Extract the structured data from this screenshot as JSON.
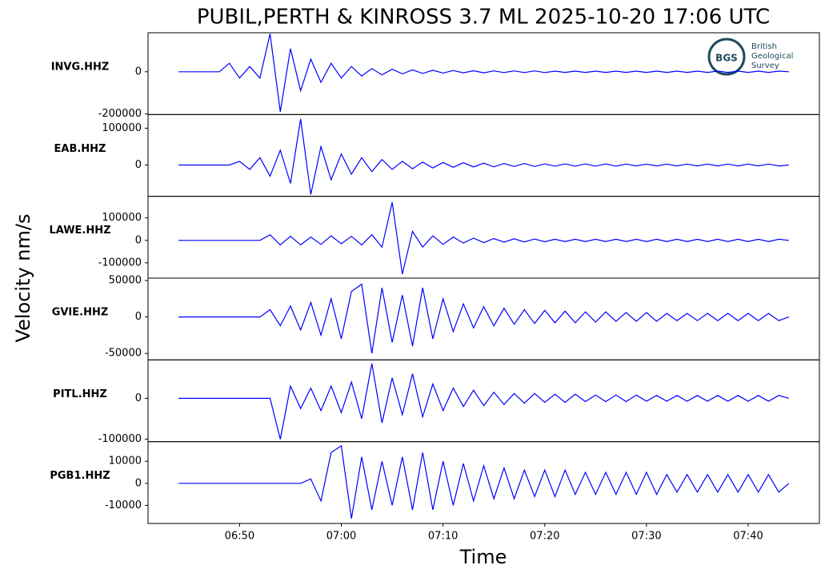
{
  "chart_data": {
    "type": "line",
    "title": "PUBIL,PERTH & KINROSS 3.7 ML   2025-10-20 17:06 UTC",
    "xlabel": "Time",
    "ylabel": "Velocity nm/s",
    "x": [
      "06:44",
      "06:45",
      "06:46",
      "06:47",
      "06:48",
      "06:49",
      "06:50",
      "06:51",
      "06:52",
      "06:53",
      "06:54",
      "06:55",
      "06:56",
      "06:57",
      "06:58",
      "06:59",
      "07:00",
      "07:01",
      "07:02",
      "07:03",
      "07:04",
      "07:05",
      "07:06",
      "07:07",
      "07:08",
      "07:09",
      "07:10",
      "07:11",
      "07:12",
      "07:13",
      "07:14",
      "07:15",
      "07:16",
      "07:17",
      "07:18",
      "07:19",
      "07:20",
      "07:21",
      "07:22",
      "07:23",
      "07:24",
      "07:25",
      "07:26",
      "07:27",
      "07:28",
      "07:29",
      "07:30",
      "07:31",
      "07:32",
      "07:33",
      "07:34",
      "07:35",
      "07:36",
      "07:37",
      "07:38",
      "07:39",
      "07:40",
      "07:41",
      "07:42",
      "07:43",
      "07:44"
    ],
    "xlim": [
      "06:41",
      "07:47"
    ],
    "xticks": [
      "06:50",
      "07:00",
      "07:10",
      "07:20",
      "07:30",
      "07:40"
    ],
    "series": [
      {
        "name": "INVG.HHZ",
        "color": "#0000ff",
        "ylim": [
          -203000,
          185000
        ],
        "yticks": [
          -200000,
          0
        ],
        "values": [
          0,
          0,
          0,
          0,
          0,
          40000,
          -30000,
          25000,
          -30000,
          180000,
          -190000,
          110000,
          -90000,
          60000,
          -50000,
          40000,
          -30000,
          25000,
          -20000,
          15000,
          -15000,
          12000,
          -10000,
          9000,
          -8000,
          7000,
          -6000,
          6000,
          -5000,
          5000,
          -5000,
          4000,
          -4000,
          4000,
          -4000,
          4000,
          -4000,
          3000,
          -3000,
          3000,
          -3000,
          3000,
          -3000,
          3000,
          -3000,
          3000,
          -3000,
          3000,
          -3000,
          3000,
          -3000,
          3000,
          -3000,
          3000,
          -3000,
          3000,
          -3000,
          3000,
          -3000,
          3000,
          0
        ]
      },
      {
        "name": "EAB.HHZ",
        "color": "#0000ff",
        "ylim": [
          -85000,
          137000
        ],
        "yticks": [
          0,
          100000
        ],
        "values": [
          0,
          0,
          0,
          0,
          0,
          0,
          10000,
          -12000,
          20000,
          -30000,
          40000,
          -50000,
          125000,
          -80000,
          50000,
          -40000,
          30000,
          -25000,
          20000,
          -18000,
          15000,
          -12000,
          10000,
          -10000,
          8000,
          -8000,
          7000,
          -6000,
          6000,
          -5000,
          5000,
          -5000,
          4000,
          -4000,
          4000,
          -4000,
          3000,
          -3000,
          3000,
          -3000,
          3000,
          -3000,
          3000,
          -3000,
          2500,
          -2500,
          2500,
          -2500,
          2500,
          -2500,
          2500,
          -2500,
          2500,
          -2500,
          2500,
          -2500,
          2500,
          -2500,
          2500,
          -2500,
          0
        ]
      },
      {
        "name": "LAWE.HHZ",
        "color": "#0000ff",
        "ylim": [
          -168000,
          196000
        ],
        "yticks": [
          -100000,
          0,
          100000
        ],
        "values": [
          0,
          0,
          0,
          0,
          0,
          0,
          0,
          0,
          0,
          25000,
          -20000,
          18000,
          -20000,
          15000,
          -18000,
          20000,
          -15000,
          18000,
          -20000,
          25000,
          -30000,
          170000,
          -150000,
          40000,
          -30000,
          20000,
          -18000,
          15000,
          -12000,
          10000,
          -10000,
          8000,
          -8000,
          7000,
          -7000,
          6000,
          -6000,
          5000,
          -5000,
          5000,
          -5000,
          5000,
          -5000,
          5000,
          -5000,
          5000,
          -5000,
          5000,
          -5000,
          5000,
          -5000,
          5000,
          -5000,
          5000,
          -5000,
          5000,
          -5000,
          5000,
          -5000,
          5000,
          0
        ]
      },
      {
        "name": "GVIE.HHZ",
        "color": "#0000ff",
        "ylim": [
          -58900,
          53300
        ],
        "yticks": [
          -50000,
          0,
          50000
        ],
        "values": [
          0,
          0,
          0,
          0,
          0,
          0,
          0,
          0,
          0,
          10000,
          -12000,
          15000,
          -18000,
          20000,
          -25000,
          25000,
          -30000,
          35000,
          45000,
          -50000,
          40000,
          -35000,
          30000,
          -40000,
          40000,
          -30000,
          25000,
          -20000,
          18000,
          -15000,
          14000,
          -12000,
          12000,
          -10000,
          10000,
          -9000,
          9000,
          -8000,
          8000,
          -8000,
          7000,
          -7000,
          7000,
          -6000,
          6000,
          -6000,
          6000,
          -6000,
          5000,
          -5000,
          5000,
          -5000,
          5000,
          -5000,
          5000,
          -5000,
          5000,
          -5000,
          5000,
          -5000,
          0
        ]
      },
      {
        "name": "PITL.HHZ",
        "color": "#0000ff",
        "ylim": [
          -106000,
          94000
        ],
        "yticks": [
          -100000,
          0
        ],
        "values": [
          0,
          0,
          0,
          0,
          0,
          0,
          0,
          0,
          0,
          0,
          -100000,
          30000,
          -25000,
          25000,
          -30000,
          30000,
          -35000,
          40000,
          -50000,
          85000,
          -60000,
          50000,
          -40000,
          60000,
          -45000,
          35000,
          -30000,
          25000,
          -20000,
          20000,
          -18000,
          15000,
          -15000,
          12000,
          -12000,
          12000,
          -10000,
          10000,
          -10000,
          10000,
          -8000,
          8000,
          -8000,
          8000,
          -8000,
          8000,
          -7000,
          7000,
          -7000,
          7000,
          -7000,
          7000,
          -7000,
          7000,
          -7000,
          7000,
          -7000,
          7000,
          -7000,
          7000,
          0
        ]
      },
      {
        "name": "PGB1.HHZ",
        "color": "#0000ff",
        "ylim": [
          -18200,
          18900
        ],
        "yticks": [
          -10000,
          0,
          10000
        ],
        "values": [
          0,
          0,
          0,
          0,
          0,
          0,
          0,
          0,
          0,
          0,
          0,
          0,
          0,
          2000,
          -8000,
          14000,
          17000,
          -16000,
          12000,
          -12000,
          10000,
          -10000,
          12000,
          -12000,
          14000,
          -12000,
          10000,
          -10000,
          9000,
          -8000,
          8000,
          -7000,
          7000,
          -7000,
          6000,
          -6000,
          6000,
          -6000,
          6000,
          -5000,
          5000,
          -5000,
          5000,
          -5000,
          5000,
          -5000,
          5000,
          -5000,
          4000,
          -4000,
          4000,
          -4000,
          4000,
          -4000,
          4000,
          -4000,
          4000,
          -4000,
          4000,
          -4000,
          0
        ]
      }
    ]
  },
  "logo": {
    "mark": "BGS",
    "lines": [
      "British",
      "Geological",
      "Survey"
    ]
  }
}
